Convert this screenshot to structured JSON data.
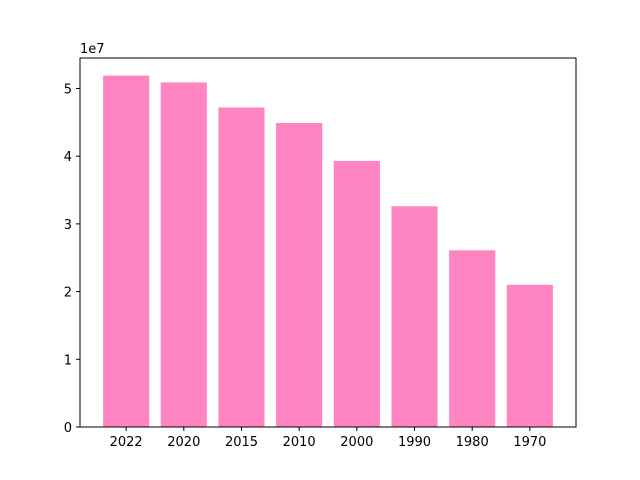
{
  "chart_data": {
    "type": "bar",
    "categories": [
      "2022",
      "2020",
      "2015",
      "2010",
      "2000",
      "1990",
      "1980",
      "1970"
    ],
    "values": [
      51900000,
      50900000,
      47200000,
      44900000,
      39300000,
      32600000,
      26100000,
      21000000
    ],
    "title": "",
    "xlabel": "",
    "ylabel": "",
    "ylim": [
      0,
      54500000
    ],
    "y_ticks": [
      0,
      1,
      2,
      3,
      4,
      5
    ],
    "y_tick_scale": 10000000,
    "y_offset_label": "1e7",
    "bar_color": "#ff85c2",
    "grid": false,
    "legend": "none"
  }
}
